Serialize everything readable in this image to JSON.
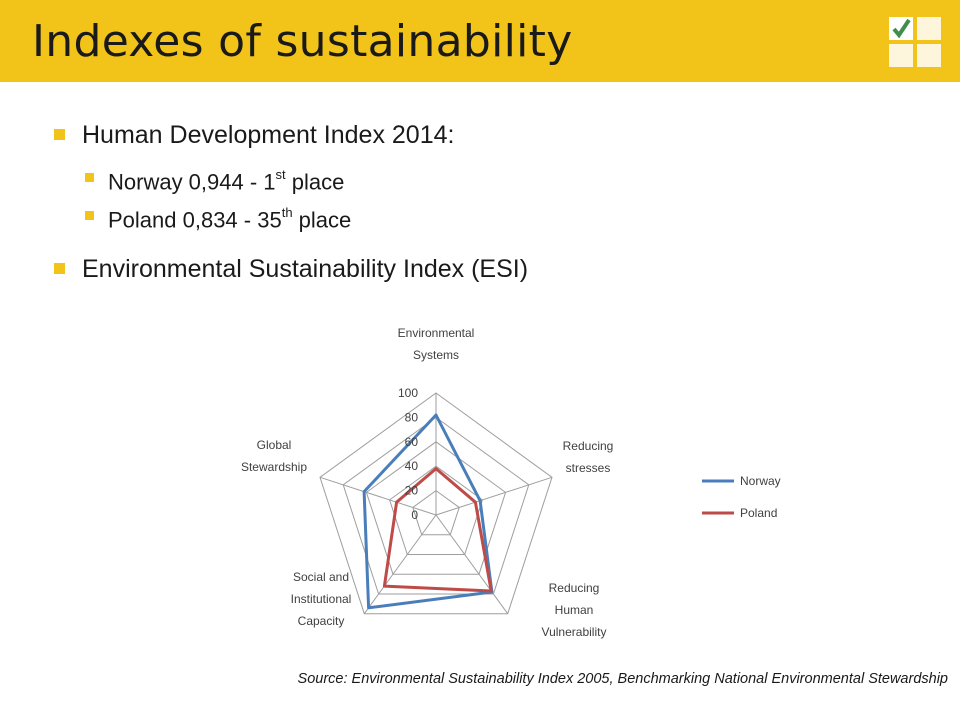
{
  "header": {
    "title": "Indexes of sustainability",
    "accent_color": "#f2c318"
  },
  "bullets": {
    "hdi": "Human Development Index 2014:",
    "norway_text": "Norway 0,944 - 1",
    "norway_sup": "st",
    "norway_suffix": " place",
    "poland_text": "Poland 0,834 - 35",
    "poland_sup": "th",
    "poland_suffix": " place",
    "esi": "Environmental Sustainability Index (ESI)"
  },
  "chart_data": {
    "type": "radar",
    "categories": [
      [
        "Environmental",
        "Systems"
      ],
      [
        "Reducing",
        "stresses"
      ],
      [
        "Reducing",
        "Human",
        "Vulnerability"
      ],
      [
        "Social and",
        "Institutional",
        "Capacity"
      ],
      [
        "Global",
        "Stewardship"
      ]
    ],
    "rlim": [
      0,
      100
    ],
    "ticks": [
      0,
      20,
      40,
      60,
      80,
      100
    ],
    "series": [
      {
        "name": "Norway",
        "color": "#4a7ebb",
        "values": [
          82,
          38,
          78,
          94,
          62
        ]
      },
      {
        "name": "Poland",
        "color": "#be4b48",
        "values": [
          38,
          34,
          77,
          72,
          34
        ]
      }
    ],
    "legend": "right",
    "grid": true
  },
  "source": "Source: Environmental Sustainability Index 2005, Benchmarking National Environmental Stewardship"
}
